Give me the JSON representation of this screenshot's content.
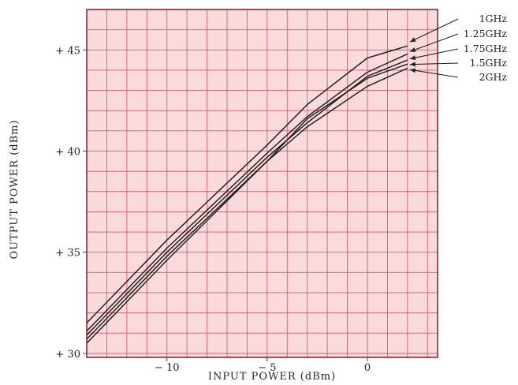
{
  "chart_data": {
    "type": "line",
    "title": "",
    "xlabel": "INPUT POWER (dBm)",
    "ylabel": "OUTPUT POWER (dBm)",
    "xlim": [
      -14,
      3.5
    ],
    "ylim": [
      29.8,
      47
    ],
    "x_ticks": [
      {
        "value": -10,
        "label": "− 10"
      },
      {
        "value": -5,
        "label": "− 5"
      },
      {
        "value": 0,
        "label": "0"
      }
    ],
    "y_ticks": [
      {
        "value": 30,
        "label": "+ 30"
      },
      {
        "value": 35,
        "label": "+ 35"
      },
      {
        "value": 40,
        "label": "+ 40"
      },
      {
        "value": 45,
        "label": "+ 45"
      }
    ],
    "grid": true,
    "grid_minor_step": {
      "x": 1,
      "y": 1
    },
    "background_color": "#fadadd",
    "grid_color": "#c94a5a",
    "line_color": "#222222",
    "legend_position": "right",
    "series": [
      {
        "name": "1GHz",
        "x": [
          -14,
          -10,
          -5,
          -3,
          0,
          2
        ],
        "y": [
          31.5,
          35.6,
          40.3,
          42.3,
          44.6,
          45.2
        ]
      },
      {
        "name": "1.25GHz",
        "x": [
          -14,
          -10,
          -5,
          -3,
          0,
          2
        ],
        "y": [
          31.1,
          35.2,
          39.9,
          41.7,
          43.9,
          44.8
        ]
      },
      {
        "name": "1.75GHz",
        "x": [
          -14,
          -10,
          -5,
          -3,
          0,
          2
        ],
        "y": [
          30.9,
          35.0,
          39.7,
          41.4,
          43.7,
          44.5
        ]
      },
      {
        "name": "1.5GHz",
        "x": [
          -14,
          -10,
          -5,
          -3,
          0,
          2
        ],
        "y": [
          30.7,
          34.8,
          39.5,
          41.6,
          43.6,
          44.3
        ]
      },
      {
        "name": "2GHz",
        "x": [
          -14,
          -10,
          -5,
          -3,
          0,
          2
        ],
        "y": [
          30.5,
          34.6,
          39.5,
          41.2,
          43.2,
          44.1
        ]
      }
    ]
  }
}
